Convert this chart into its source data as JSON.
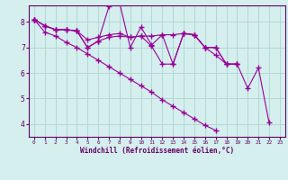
{
  "xlabel": "Windchill (Refroidissement éolien,°C)",
  "bg_color": "#d4efed",
  "grid_color": "#b2d8d4",
  "line_color": "#990099",
  "spine_color": "#660066",
  "text_color": "#660066",
  "xlim_min": -0.5,
  "xlim_max": 23.5,
  "ylim_min": 3.5,
  "ylim_max": 8.65,
  "yticks": [
    4,
    5,
    6,
    7,
    8
  ],
  "xticks": [
    0,
    1,
    2,
    3,
    4,
    5,
    6,
    7,
    8,
    9,
    10,
    11,
    12,
    13,
    14,
    15,
    16,
    17,
    18,
    19,
    20,
    21,
    22,
    23
  ],
  "series": [
    [
      8.1,
      7.85,
      7.7,
      7.7,
      7.65,
      7.0,
      7.25,
      8.6,
      8.75,
      7.0,
      7.8,
      7.1,
      7.5,
      6.35,
      7.55,
      7.5,
      7.0,
      7.0,
      6.35,
      6.35,
      5.4,
      6.2,
      4.05
    ],
    [
      8.1,
      7.85,
      7.7,
      7.7,
      7.65,
      7.3,
      7.4,
      7.5,
      7.55,
      7.4,
      7.45,
      7.05,
      6.35,
      6.35,
      7.55,
      7.5,
      7.0,
      6.7,
      6.35,
      6.35
    ],
    [
      8.1,
      7.85,
      7.7,
      7.7,
      7.65,
      7.0,
      7.25,
      7.4,
      7.45,
      7.4,
      7.45,
      7.45,
      7.5,
      7.5,
      7.55,
      7.5,
      7.0,
      7.0,
      6.35,
      6.35
    ],
    [
      8.1,
      7.6,
      7.45,
      7.2,
      7.0,
      6.75,
      6.5,
      6.25,
      6.0,
      5.75,
      5.5,
      5.25,
      4.95,
      4.7,
      4.45,
      4.2,
      3.95,
      3.75
    ]
  ]
}
